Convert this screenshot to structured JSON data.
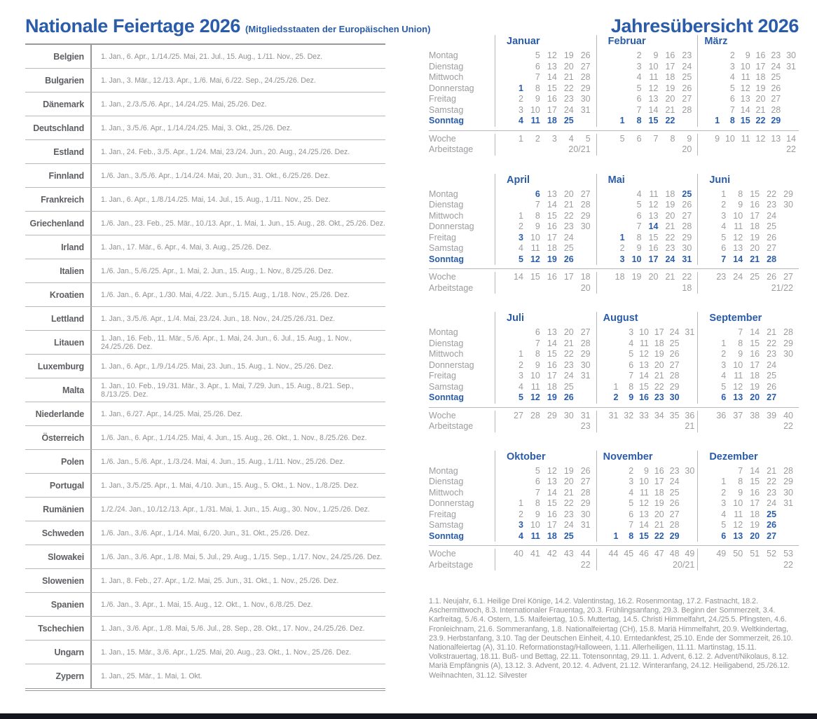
{
  "header": {
    "left_title": "Nationale Feiertage 2026",
    "left_subtitle": "(Mitgliedsstaaten der Europäischen Union)",
    "right_title": "Jahresübersicht 2026"
  },
  "colors": {
    "accent_blue": "#2a5ca9",
    "text_gray": "#8e9093",
    "label_dark_gray": "#5d5f63",
    "line_gray": "#b6b8bb",
    "bottom_bar": "#15161d"
  },
  "holidays_table": {
    "rows": [
      {
        "country": "Belgien",
        "dates": "1. Jan., 6. Apr., 1./14./25. Mai, 21. Jul., 15. Aug., 1./11. Nov., 25. Dez."
      },
      {
        "country": "Bulgarien",
        "dates": "1. Jan., 3. Mär., 12./13. Apr., 1./6. Mai, 6./22. Sep., 24./25./26. Dez."
      },
      {
        "country": "Dänemark",
        "dates": "1. Jan., 2./3./5./6. Apr., 14./24./25. Mai, 25./26. Dez."
      },
      {
        "country": "Deutschland",
        "dates": "1. Jan., 3./5./6. Apr., 1./14./24./25. Mai, 3. Okt., 25./26. Dez."
      },
      {
        "country": "Estland",
        "dates": "1. Jan., 24. Feb., 3./5. Apr., 1./24. Mai, 23./24. Jun., 20. Aug., 24./25./26. Dez."
      },
      {
        "country": "Finnland",
        "dates": "1./6. Jan., 3./5./6. Apr., 1./14./24. Mai, 20. Jun., 31. Okt., 6./25./26. Dez."
      },
      {
        "country": "Frankreich",
        "dates": "1. Jan., 6. Apr., 1./8./14./25. Mai, 14. Jul., 15. Aug., 1./11. Nov., 25. Dez."
      },
      {
        "country": "Griechenland",
        "dates": "1./6. Jan., 23. Feb., 25. Mär., 10./13. Apr., 1. Mai, 1. Jun., 15. Aug., 28. Okt., 25./26. Dez."
      },
      {
        "country": "Irland",
        "dates": "1. Jan., 17. Mär., 6. Apr., 4. Mai, 3. Aug., 25./26. Dez."
      },
      {
        "country": "Italien",
        "dates": "1./6. Jan., 5./6./25. Apr., 1. Mai, 2. Jun., 15. Aug., 1. Nov., 8./25./26. Dez."
      },
      {
        "country": "Kroatien",
        "dates": "1./6. Jan., 6. Apr., 1./30. Mai, 4./22. Jun., 5./15. Aug., 1./18. Nov., 25./26. Dez."
      },
      {
        "country": "Lettland",
        "dates": "1. Jan., 3./5./6. Apr., 1./4. Mai, 23./24. Jun., 18. Nov., 24./25./26./31. Dez."
      },
      {
        "country": "Litauen",
        "dates": "1. Jan., 16. Feb., 11. Mär., 5./6. Apr., 1. Mai, 24. Jun., 6. Jul., 15. Aug., 1. Nov., 24./25./26. Dez."
      },
      {
        "country": "Luxemburg",
        "dates": "1. Jan., 6. Apr., 1./9./14./25. Mai, 23. Jun., 15. Aug., 1. Nov., 25./26. Dez."
      },
      {
        "country": "Malta",
        "dates": "1. Jan., 10. Feb., 19./31. Mär., 3. Apr., 1. Mai, 7./29. Jun., 15. Aug., 8./21. Sep., 8./13./25. Dez."
      },
      {
        "country": "Niederlande",
        "dates": "1. Jan., 6./27. Apr., 14./25. Mai, 25./26. Dez."
      },
      {
        "country": "Österreich",
        "dates": "1./6. Jan., 6. Apr., 1./14./25. Mai, 4. Jun., 15. Aug., 26. Okt., 1. Nov., 8./25./26. Dez."
      },
      {
        "country": "Polen",
        "dates": "1./6. Jan., 5./6. Apr., 1./3./24. Mai, 4. Jun., 15. Aug., 1./11. Nov., 25./26. Dez."
      },
      {
        "country": "Portugal",
        "dates": "1. Jan., 3./5./25. Apr., 1. Mai, 4./10. Jun., 15. Aug., 5. Okt., 1. Nov., 1./8./25. Dez."
      },
      {
        "country": "Rumänien",
        "dates": "1./2./24. Jan., 10./12./13. Apr., 1./31. Mai, 1. Jun., 15. Aug., 30. Nov., 1./25./26. Dez."
      },
      {
        "country": "Schweden",
        "dates": "1./6. Jan., 3./6. Apr., 1./14. Mai, 6./20. Jun., 31. Okt., 25./26. Dez."
      },
      {
        "country": "Slowakei",
        "dates": "1./6. Jan., 3./6. Apr., 1./8. Mai, 5. Jul., 29. Aug., 1./15. Sep., 1./17. Nov., 24./25./26. Dez."
      },
      {
        "country": "Slowenien",
        "dates": "1. Jan., 8. Feb., 27. Apr., 1./2. Mai, 25. Jun., 31. Okt., 1. Nov., 25./26. Dez."
      },
      {
        "country": "Spanien",
        "dates": "1./6. Jan., 3. Apr., 1. Mai, 15. Aug., 12. Okt., 1. Nov., 6./8./25. Dez."
      },
      {
        "country": "Tschechien",
        "dates": "1. Jan., 3./6. Apr., 1./8. Mai, 5./6. Jul., 28. Sep., 28. Okt., 17. Nov., 24./25./26. Dez."
      },
      {
        "country": "Ungarn",
        "dates": "1. Jan., 15. Mär., 3./6. Apr., 1./25. Mai, 20. Aug., 23. Okt., 1. Nov., 25./26. Dez."
      },
      {
        "country": "Zypern",
        "dates": "1. Jan., 25. Mär., 1. Mai, 1. Okt."
      }
    ]
  },
  "calendar": {
    "weekday_labels": [
      "Montag",
      "Dienstag",
      "Mittwoch",
      "Donnerstag",
      "Freitag",
      "Samstag",
      "Sonntag"
    ],
    "week_label": "Woche",
    "workdays_label": "Arbeitstage",
    "months": [
      {
        "name": "Januar",
        "cols": 5,
        "holidays": [
          "1"
        ],
        "weeks": [
          "1",
          "2",
          "3",
          "4",
          "5"
        ],
        "workdays": "20/21",
        "rows": [
          [
            "",
            "5",
            "12",
            "19",
            "26"
          ],
          [
            "",
            "6",
            "13",
            "20",
            "27"
          ],
          [
            "",
            "7",
            "14",
            "21",
            "28"
          ],
          [
            "1",
            "8",
            "15",
            "22",
            "29"
          ],
          [
            "2",
            "9",
            "16",
            "23",
            "30"
          ],
          [
            "3",
            "10",
            "17",
            "24",
            "31"
          ],
          [
            "4",
            "11",
            "18",
            "25",
            ""
          ]
        ]
      },
      {
        "name": "Februar",
        "cols": 5,
        "holidays": [],
        "weeks": [
          "5",
          "6",
          "7",
          "8",
          "9"
        ],
        "workdays": "20",
        "rows": [
          [
            "",
            "2",
            "9",
            "16",
            "23"
          ],
          [
            "",
            "3",
            "10",
            "17",
            "24"
          ],
          [
            "",
            "4",
            "11",
            "18",
            "25"
          ],
          [
            "",
            "5",
            "12",
            "19",
            "26"
          ],
          [
            "",
            "6",
            "13",
            "20",
            "27"
          ],
          [
            "",
            "7",
            "14",
            "21",
            "28"
          ],
          [
            "1",
            "8",
            "15",
            "22",
            ""
          ]
        ]
      },
      {
        "name": "März",
        "cols": 6,
        "holidays": [],
        "weeks": [
          "9",
          "10",
          "11",
          "12",
          "13",
          "14"
        ],
        "workdays": "22",
        "rows": [
          [
            "",
            "2",
            "9",
            "16",
            "23",
            "30"
          ],
          [
            "",
            "3",
            "10",
            "17",
            "24",
            "31"
          ],
          [
            "",
            "4",
            "11",
            "18",
            "25",
            ""
          ],
          [
            "",
            "5",
            "12",
            "19",
            "26",
            ""
          ],
          [
            "",
            "6",
            "13",
            "20",
            "27",
            ""
          ],
          [
            "",
            "7",
            "14",
            "21",
            "28",
            ""
          ],
          [
            "1",
            "8",
            "15",
            "22",
            "29",
            ""
          ]
        ]
      },
      {
        "name": "April",
        "cols": 5,
        "holidays": [
          "3",
          "6"
        ],
        "weeks": [
          "14",
          "15",
          "16",
          "17",
          "18"
        ],
        "workdays": "20",
        "rows": [
          [
            "",
            "6",
            "13",
            "20",
            "27"
          ],
          [
            "",
            "7",
            "14",
            "21",
            "28"
          ],
          [
            "1",
            "8",
            "15",
            "22",
            "29"
          ],
          [
            "2",
            "9",
            "16",
            "23",
            "30"
          ],
          [
            "3",
            "10",
            "17",
            "24",
            ""
          ],
          [
            "4",
            "11",
            "18",
            "25",
            ""
          ],
          [
            "5",
            "12",
            "19",
            "26",
            ""
          ]
        ]
      },
      {
        "name": "Mai",
        "cols": 5,
        "holidays": [
          "1",
          "14",
          "25"
        ],
        "weeks": [
          "18",
          "19",
          "20",
          "21",
          "22"
        ],
        "workdays": "18",
        "rows": [
          [
            "",
            "4",
            "11",
            "18",
            "25"
          ],
          [
            "",
            "5",
            "12",
            "19",
            "26"
          ],
          [
            "",
            "6",
            "13",
            "20",
            "27"
          ],
          [
            "",
            "7",
            "14",
            "21",
            "28"
          ],
          [
            "1",
            "8",
            "15",
            "22",
            "29"
          ],
          [
            "2",
            "9",
            "16",
            "23",
            "30"
          ],
          [
            "3",
            "10",
            "17",
            "24",
            "31"
          ]
        ]
      },
      {
        "name": "Juni",
        "cols": 5,
        "holidays": [],
        "weeks": [
          "23",
          "24",
          "25",
          "26",
          "27"
        ],
        "workdays": "21/22",
        "rows": [
          [
            "1",
            "8",
            "15",
            "22",
            "29"
          ],
          [
            "2",
            "9",
            "16",
            "23",
            "30"
          ],
          [
            "3",
            "10",
            "17",
            "24",
            ""
          ],
          [
            "4",
            "11",
            "18",
            "25",
            ""
          ],
          [
            "5",
            "12",
            "19",
            "26",
            ""
          ],
          [
            "6",
            "13",
            "20",
            "27",
            ""
          ],
          [
            "7",
            "14",
            "21",
            "28",
            ""
          ]
        ]
      },
      {
        "name": "Juli",
        "cols": 5,
        "holidays": [],
        "weeks": [
          "27",
          "28",
          "29",
          "30",
          "31"
        ],
        "workdays": "23",
        "rows": [
          [
            "",
            "6",
            "13",
            "20",
            "27"
          ],
          [
            "",
            "7",
            "14",
            "21",
            "28"
          ],
          [
            "1",
            "8",
            "15",
            "22",
            "29"
          ],
          [
            "2",
            "9",
            "16",
            "23",
            "30"
          ],
          [
            "3",
            "10",
            "17",
            "24",
            "31"
          ],
          [
            "4",
            "11",
            "18",
            "25",
            ""
          ],
          [
            "5",
            "12",
            "19",
            "26",
            ""
          ]
        ]
      },
      {
        "name": "August",
        "cols": 6,
        "holidays": [],
        "weeks": [
          "31",
          "32",
          "33",
          "34",
          "35",
          "36"
        ],
        "workdays": "21",
        "rows": [
          [
            "",
            "3",
            "10",
            "17",
            "24",
            "31"
          ],
          [
            "",
            "4",
            "11",
            "18",
            "25",
            ""
          ],
          [
            "",
            "5",
            "12",
            "19",
            "26",
            ""
          ],
          [
            "",
            "6",
            "13",
            "20",
            "27",
            ""
          ],
          [
            "",
            "7",
            "14",
            "21",
            "28",
            ""
          ],
          [
            "1",
            "8",
            "15",
            "22",
            "29",
            ""
          ],
          [
            "2",
            "9",
            "16",
            "23",
            "30",
            ""
          ]
        ]
      },
      {
        "name": "September",
        "cols": 5,
        "holidays": [],
        "weeks": [
          "36",
          "37",
          "38",
          "39",
          "40"
        ],
        "workdays": "22",
        "rows": [
          [
            "",
            "7",
            "14",
            "21",
            "28"
          ],
          [
            "1",
            "8",
            "15",
            "22",
            "29"
          ],
          [
            "2",
            "9",
            "16",
            "23",
            "30"
          ],
          [
            "3",
            "10",
            "17",
            "24",
            ""
          ],
          [
            "4",
            "11",
            "18",
            "25",
            ""
          ],
          [
            "5",
            "12",
            "19",
            "26",
            ""
          ],
          [
            "6",
            "13",
            "20",
            "27",
            ""
          ]
        ]
      },
      {
        "name": "Oktober",
        "cols": 5,
        "holidays": [
          "3"
        ],
        "weeks": [
          "40",
          "41",
          "42",
          "43",
          "44"
        ],
        "workdays": "22",
        "rows": [
          [
            "",
            "5",
            "12",
            "19",
            "26"
          ],
          [
            "",
            "6",
            "13",
            "20",
            "27"
          ],
          [
            "",
            "7",
            "14",
            "21",
            "28"
          ],
          [
            "1",
            "8",
            "15",
            "22",
            "29"
          ],
          [
            "2",
            "9",
            "16",
            "23",
            "30"
          ],
          [
            "3",
            "10",
            "17",
            "24",
            "31"
          ],
          [
            "4",
            "11",
            "18",
            "25",
            ""
          ]
        ]
      },
      {
        "name": "November",
        "cols": 6,
        "holidays": [],
        "weeks": [
          "44",
          "45",
          "46",
          "47",
          "48",
          "49"
        ],
        "workdays": "20/21",
        "rows": [
          [
            "",
            "2",
            "9",
            "16",
            "23",
            "30"
          ],
          [
            "",
            "3",
            "10",
            "17",
            "24",
            ""
          ],
          [
            "",
            "4",
            "11",
            "18",
            "25",
            ""
          ],
          [
            "",
            "5",
            "12",
            "19",
            "26",
            ""
          ],
          [
            "",
            "6",
            "13",
            "20",
            "27",
            ""
          ],
          [
            "",
            "7",
            "14",
            "21",
            "28",
            ""
          ],
          [
            "1",
            "8",
            "15",
            "22",
            "29",
            ""
          ]
        ]
      },
      {
        "name": "Dezember",
        "cols": 5,
        "holidays": [
          "25",
          "26"
        ],
        "weeks": [
          "49",
          "50",
          "51",
          "52",
          "53"
        ],
        "workdays": "22",
        "rows": [
          [
            "",
            "7",
            "14",
            "21",
            "28"
          ],
          [
            "1",
            "8",
            "15",
            "22",
            "29"
          ],
          [
            "2",
            "9",
            "16",
            "23",
            "30"
          ],
          [
            "3",
            "10",
            "17",
            "24",
            "31"
          ],
          [
            "4",
            "11",
            "18",
            "25",
            ""
          ],
          [
            "5",
            "12",
            "19",
            "26",
            ""
          ],
          [
            "6",
            "13",
            "20",
            "27",
            ""
          ]
        ]
      }
    ]
  },
  "footnote": "1.1. Neujahr, 6.1. Heilige Drei Könige, 14.2. Valentinstag, 16.2. Rosenmontag, 17.2. Fastnacht, 18.2. Aschermittwoch, 8.3. Internationaler Frauentag, 20.3. Frühlingsanfang, 29.3. Beginn der Sommerzeit, 3.4. Karfreitag, 5./6.4. Ostern, 1.5. Maifeiertag, 10.5. Muttertag, 14.5. Christi Himmelfahrt, 24./25.5. Pfingsten, 4.6. Fronleichnam, 21.6. Sommeranfang, 1.8. Nationalfeiertag (CH), 15.8. Mariä Himmelfahrt, 20.9. Weltkindertag, 23.9. Herbstanfang, 3.10. Tag der Deutschen Einheit, 4.10. Erntedankfest, 25.10. Ende der Sommerzeit, 26.10. Nationalfeiertag (A), 31.10. Reformationstag/Halloween, 1.11. Allerheiligen, 11.11. Martinstag, 15.11. Volkstrauertag, 18.11. Buß- und Bettag, 22.11. Totensonntag, 29.11. 1. Advent, 6.12. 2. Advent/Nikolaus, 8.12. Mariä Empfängnis (A), 13.12. 3. Advent, 20.12. 4. Advent, 21.12. Winteranfang, 24.12. Heiligabend, 25./26.12. Weihnachten, 31.12. Silvester"
}
